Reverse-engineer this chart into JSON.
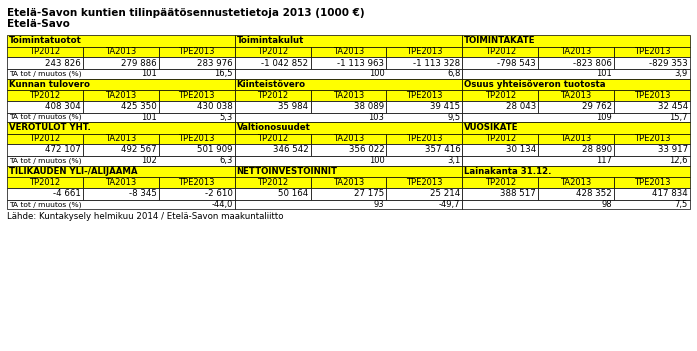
{
  "title": "Etelä-Savon kuntien tilinpäätösennustetietoja 2013 (1000 €)",
  "subtitle": "Etelä-Savo",
  "footer": "Lähde: Kuntakysely helmikuu 2014 / Etelä-Savon maakuntaliitto",
  "col_headers": [
    "TP2012",
    "TA2013",
    "TPE2013"
  ],
  "yellow_bg": "#FFFF00",
  "white_bg": "#FFFFFF",
  "sections": [
    {
      "header_left": "Toimintatuotot",
      "header_mid": "Toimintakulut",
      "header_right": "TOIMINTAKATE",
      "values_left": [
        "243 826",
        "279 886",
        "283 976"
      ],
      "values_mid": [
        "-1 042 852",
        "-1 113 963",
        "-1 113 328"
      ],
      "values_right": [
        "-798 543",
        "-823 806",
        "-829 353"
      ],
      "ta_left": [
        "",
        "101",
        "16,5"
      ],
      "ta_mid": [
        "",
        "100",
        "6,8"
      ],
      "ta_right": [
        "",
        "101",
        "3,9"
      ]
    },
    {
      "header_left": "Kunnan tulovero",
      "header_mid": "Kiinteistövero",
      "header_right": "Osuus yhteisöveron tuotosta",
      "values_left": [
        "408 304",
        "425 350",
        "430 038"
      ],
      "values_mid": [
        "35 984",
        "38 089",
        "39 415"
      ],
      "values_right": [
        "28 043",
        "29 762",
        "32 454"
      ],
      "ta_left": [
        "",
        "101",
        "5,3"
      ],
      "ta_mid": [
        "",
        "103",
        "9,5"
      ],
      "ta_right": [
        "",
        "109",
        "15,7"
      ]
    },
    {
      "header_left": "VEROTULOT YHT.",
      "header_mid": "Valtionosuudet",
      "header_right": "VUOSIKATE",
      "values_left": [
        "472 107",
        "492 567",
        "501 909"
      ],
      "values_mid": [
        "346 542",
        "356 022",
        "357 416"
      ],
      "values_right": [
        "30 134",
        "28 890",
        "33 917"
      ],
      "ta_left": [
        "",
        "102",
        "6,3"
      ],
      "ta_mid": [
        "",
        "100",
        "3,1"
      ],
      "ta_right": [
        "",
        "117",
        "12,6"
      ]
    },
    {
      "header_left": "TILIKAUDEN YLI-/ALIJÄÄMÄ",
      "header_mid": "NETTOINVESTOINNIT",
      "header_right": "Lainakanta 31.12.",
      "values_left": [
        "-4 661",
        "-8 345",
        "-2 610"
      ],
      "values_mid": [
        "50 164",
        "27 175",
        "25 214"
      ],
      "values_right": [
        "388 517",
        "428 352",
        "417 834"
      ],
      "ta_left": [
        "",
        "",
        "-44,0"
      ],
      "ta_mid": [
        "",
        "93",
        "-49,7"
      ],
      "ta_right": [
        "",
        "98",
        "7,5"
      ]
    }
  ]
}
